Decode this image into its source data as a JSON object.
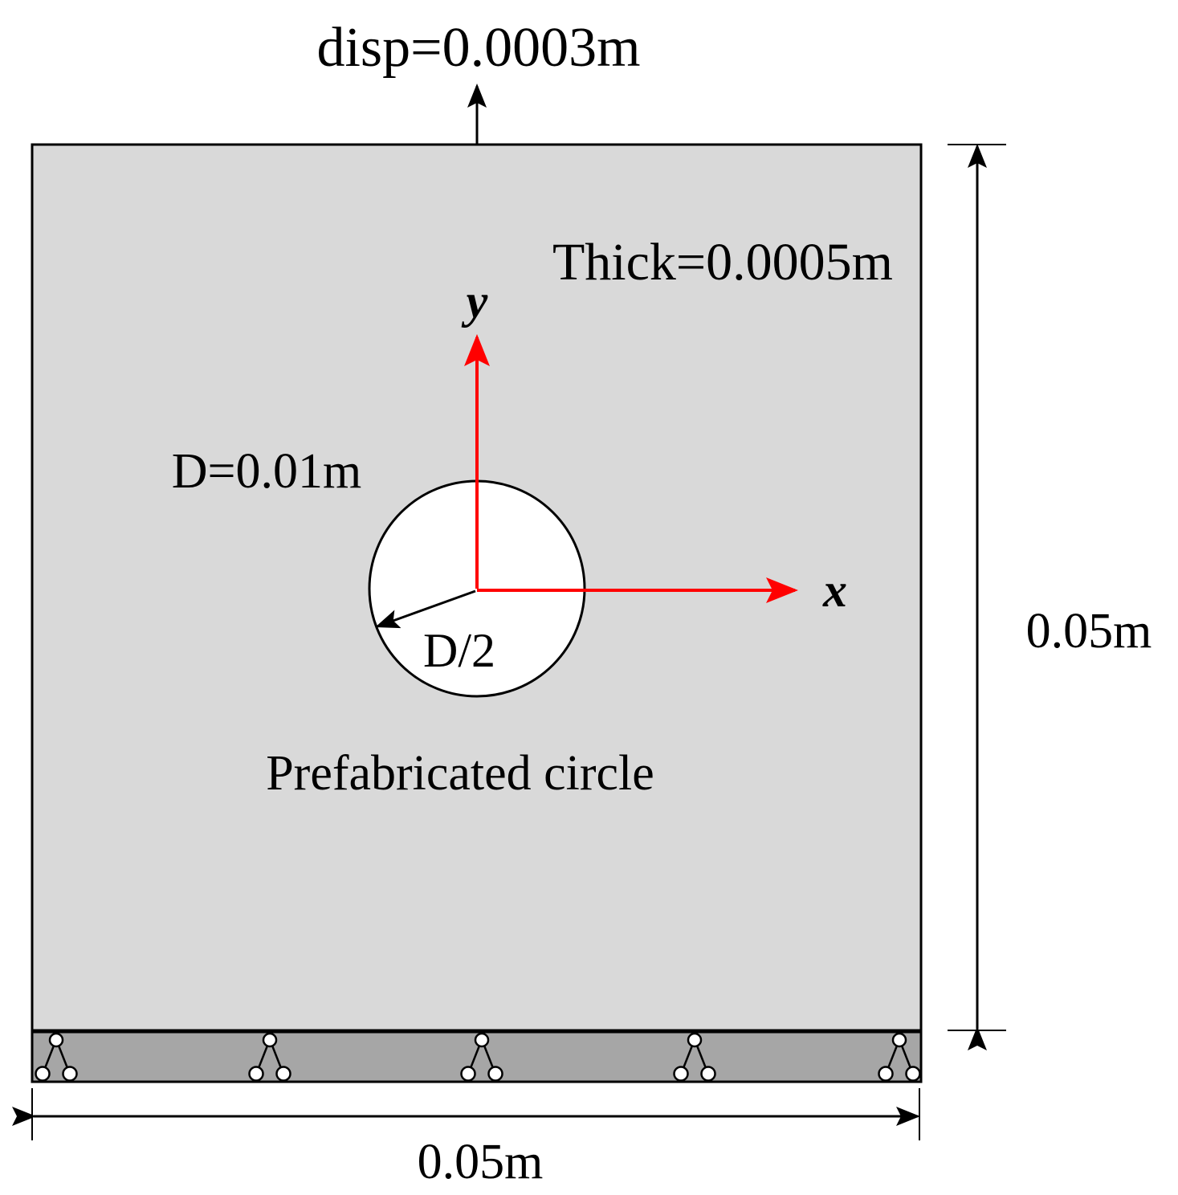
{
  "load_label": "disp=0.0003m",
  "thickness_label": "Thick=0.0005m",
  "axes": {
    "y": "y",
    "x": "x"
  },
  "diameter_label": "D=0.01m",
  "radius_label": "D/2",
  "hole_label": "Prefabricated circle",
  "height_label": "0.05m",
  "width_label": "0.05m"
}
